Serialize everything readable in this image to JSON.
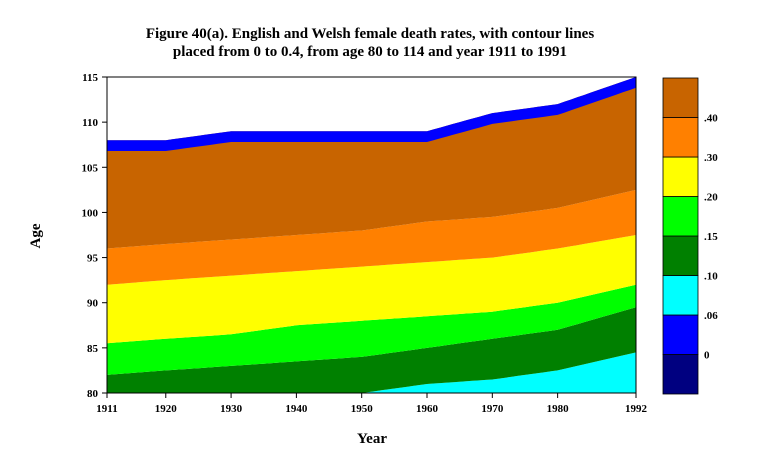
{
  "chart_data": {
    "type": "heatmap",
    "title": [
      "Figure 40(a). English and Welsh female death rates, with contour lines",
      "placed from 0 to 0.4, from age 80 to 114 and year 1911 to 1991"
    ],
    "xlabel": "Year",
    "ylabel": "Age",
    "xlim": [
      1911,
      1992
    ],
    "ylim": [
      80,
      115
    ],
    "x_tick_labels": [
      "1911",
      "1920",
      "1930",
      "1940",
      "1950",
      "1960",
      "1970",
      "1980",
      "1992"
    ],
    "y_tick_labels": [
      "80",
      "85",
      "90",
      "95",
      "100",
      "105",
      "110",
      "115"
    ],
    "contour_levels": [
      0,
      0.06,
      0.1,
      0.15,
      0.2,
      0.3,
      0.4
    ],
    "legend": {
      "labels": [
        "0",
        ".06",
        ".10",
        ".15",
        ".20",
        ".30",
        ".40"
      ],
      "colors": [
        "#000080",
        "#0000ff",
        "#00ffff",
        "#008000",
        "#00ff00",
        "#ffff00",
        "#ff8000",
        "#c86400"
      ]
    },
    "band_boundaries_by_year": {
      "years": [
        1911,
        1920,
        1930,
        1940,
        1950,
        1960,
        1970,
        1980,
        1992
      ],
      "rate_0.10_boundary_age": [
        80,
        80,
        80,
        80,
        80,
        81,
        81.5,
        82.5,
        84.5
      ],
      "rate_0.15_boundary_age": [
        82,
        82.5,
        83,
        83.5,
        84,
        85,
        86,
        87,
        89.5
      ],
      "rate_0.20_boundary_age": [
        85.5,
        86,
        86.5,
        87.5,
        88,
        88.5,
        89,
        90,
        92
      ],
      "rate_0.30_boundary_age": [
        92,
        92.5,
        93,
        93.5,
        94,
        94.5,
        95,
        96,
        97.5
      ],
      "rate_0.40_boundary_age": [
        96,
        96.5,
        97,
        97.5,
        98,
        99,
        99.5,
        100.5,
        102.5
      ],
      "data_top_age": [
        108,
        108,
        109,
        109,
        109,
        109,
        111,
        112,
        115
      ]
    },
    "grid": false,
    "legend_position": "right"
  }
}
